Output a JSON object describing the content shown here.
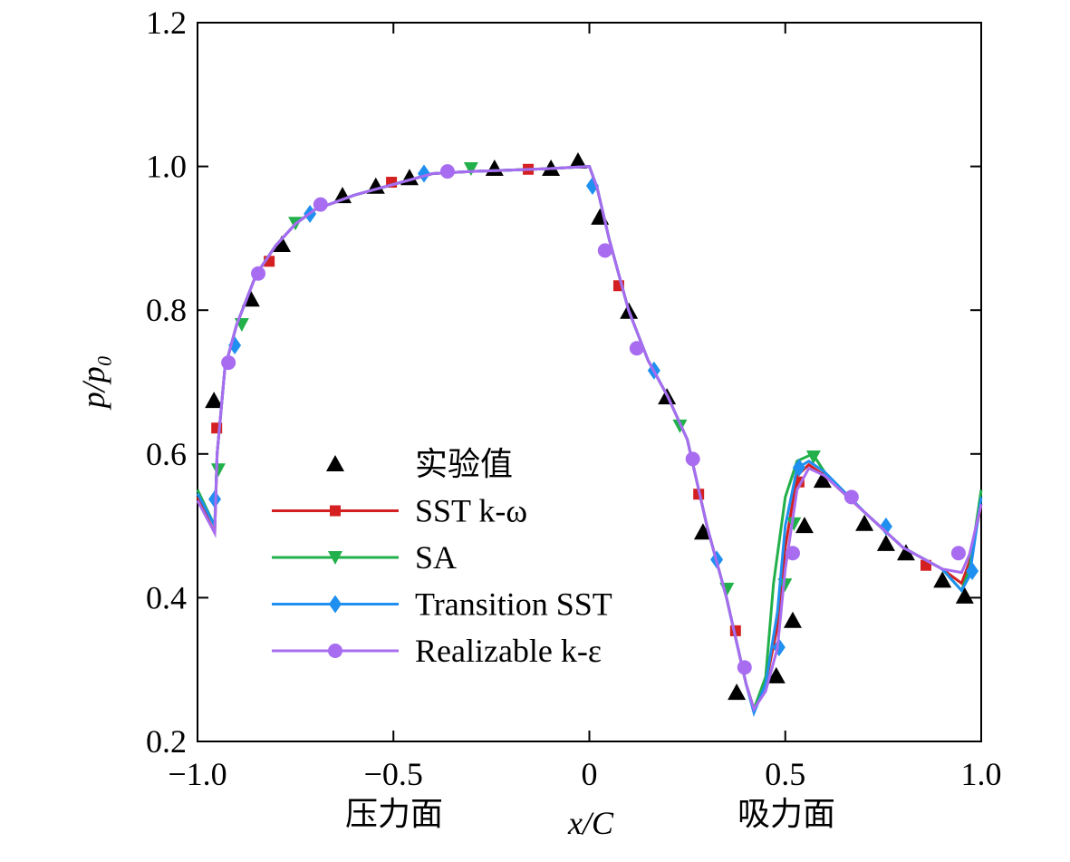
{
  "chart_data": {
    "type": "line",
    "x_label": "x/C",
    "y_label": "p/p₀",
    "annotations": [
      "压力面",
      "吸力面"
    ],
    "xlim": [
      -1.0,
      1.0
    ],
    "xticks": [
      {
        "value": -1.0,
        "label": "−1.0"
      },
      {
        "value": -0.5,
        "label": "−0.5"
      },
      0,
      0.5,
      {
        "value": 1.0,
        "label": "1.0"
      }
    ],
    "ylim": [
      0.2,
      1.2
    ],
    "yticks": [
      0.2,
      0.4,
      0.6,
      0.8,
      {
        "value": 1.0,
        "label": "1.0"
      },
      {
        "value": 1.2,
        "label": "1.2"
      }
    ],
    "legend": "lower-left",
    "series": [
      {
        "name": "实验值",
        "color": "#000000",
        "marker": "triangle",
        "x": [
          -0.958,
          -0.864,
          -0.785,
          -0.63,
          -0.545,
          -0.459,
          -0.242,
          -0.098,
          -0.029,
          0.027,
          0.101,
          0.198,
          0.29,
          0.376,
          0.477,
          0.519,
          0.549,
          0.595,
          0.702,
          0.757,
          0.808,
          0.901,
          0.958
        ],
        "values": [
          0.674,
          0.815,
          0.891,
          0.959,
          0.972,
          0.984,
          0.997,
          0.997,
          1.007,
          0.929,
          0.798,
          0.679,
          0.491,
          0.268,
          0.291,
          0.368,
          0.5,
          0.563,
          0.503,
          0.475,
          0.462,
          0.424,
          0.402
        ]
      },
      {
        "name": "SST k-ω",
        "color": "#d42020",
        "marker": "square",
        "x": [
          -1.0,
          -0.956,
          -0.95,
          -0.93,
          -0.9,
          -0.85,
          -0.8,
          -0.75,
          -0.7,
          -0.6,
          -0.5,
          -0.4,
          -0.3,
          -0.2,
          -0.1,
          0,
          0.02,
          0.05,
          0.1,
          0.15,
          0.2,
          0.25,
          0.3,
          0.35,
          0.4,
          0.42,
          0.45,
          0.48,
          0.5,
          0.53,
          0.56,
          0.6,
          0.7,
          0.8,
          0.9,
          0.95,
          0.97,
          1.0
        ],
        "values": [
          0.54,
          0.49,
          0.6,
          0.72,
          0.78,
          0.85,
          0.89,
          0.92,
          0.94,
          0.96,
          0.975,
          0.99,
          0.993,
          0.995,
          0.997,
          1.0,
          0.97,
          0.9,
          0.8,
          0.73,
          0.68,
          0.62,
          0.5,
          0.4,
          0.28,
          0.245,
          0.28,
          0.36,
          0.47,
          0.57,
          0.585,
          0.57,
          0.52,
          0.47,
          0.44,
          0.42,
          0.45,
          0.53
        ],
        "marker_x": [
          -0.951,
          -0.817,
          -0.505,
          -0.156,
          0.075,
          0.279,
          0.373,
          0.535,
          0.859
        ],
        "marker_values": [
          0.636,
          0.868,
          0.978,
          0.996,
          0.834,
          0.544,
          0.354,
          0.561,
          0.445
        ]
      },
      {
        "name": "SA",
        "color": "#22b04a",
        "marker": "down-triangle",
        "x": [
          -1.0,
          -0.956,
          -0.95,
          -0.93,
          -0.9,
          -0.85,
          -0.8,
          -0.75,
          -0.7,
          -0.6,
          -0.5,
          -0.4,
          -0.3,
          -0.2,
          -0.1,
          0,
          0.02,
          0.05,
          0.1,
          0.15,
          0.2,
          0.25,
          0.3,
          0.35,
          0.4,
          0.42,
          0.45,
          0.47,
          0.5,
          0.53,
          0.57,
          0.6,
          0.7,
          0.8,
          0.9,
          0.95,
          0.97,
          1.0
        ],
        "values": [
          0.55,
          0.5,
          0.6,
          0.72,
          0.78,
          0.85,
          0.89,
          0.92,
          0.94,
          0.96,
          0.975,
          0.99,
          0.993,
          0.995,
          0.997,
          1.0,
          0.97,
          0.9,
          0.8,
          0.73,
          0.68,
          0.62,
          0.5,
          0.4,
          0.28,
          0.245,
          0.29,
          0.42,
          0.54,
          0.59,
          0.6,
          0.575,
          0.52,
          0.47,
          0.44,
          0.41,
          0.44,
          0.55
        ],
        "marker_x": [
          -0.947,
          -0.887,
          -0.75,
          -0.302,
          0.231,
          0.351,
          0.499,
          0.522,
          0.572
        ],
        "marker_values": [
          0.578,
          0.78,
          0.921,
          0.997,
          0.639,
          0.412,
          0.418,
          0.503,
          0.596
        ]
      },
      {
        "name": "Transition SST",
        "color": "#1f8ff0",
        "marker": "diamond",
        "x": [
          -1.0,
          -0.956,
          -0.95,
          -0.93,
          -0.9,
          -0.85,
          -0.8,
          -0.75,
          -0.7,
          -0.6,
          -0.5,
          -0.4,
          -0.3,
          -0.2,
          -0.1,
          0,
          0.02,
          0.05,
          0.1,
          0.15,
          0.2,
          0.25,
          0.3,
          0.35,
          0.4,
          0.42,
          0.45,
          0.48,
          0.5,
          0.53,
          0.56,
          0.6,
          0.7,
          0.8,
          0.9,
          0.95,
          0.97,
          1.0
        ],
        "values": [
          0.545,
          0.5,
          0.6,
          0.72,
          0.78,
          0.85,
          0.89,
          0.92,
          0.94,
          0.96,
          0.975,
          0.99,
          0.993,
          0.995,
          0.997,
          1.0,
          0.97,
          0.9,
          0.8,
          0.73,
          0.68,
          0.62,
          0.5,
          0.4,
          0.28,
          0.24,
          0.28,
          0.38,
          0.5,
          0.58,
          0.59,
          0.575,
          0.52,
          0.47,
          0.44,
          0.41,
          0.43,
          0.54
        ],
        "marker_x": [
          -0.956,
          -0.905,
          -0.713,
          -0.422,
          0.008,
          0.165,
          0.325,
          0.484,
          0.535,
          0.757,
          0.977
        ],
        "marker_values": [
          0.537,
          0.751,
          0.934,
          0.99,
          0.973,
          0.716,
          0.453,
          0.331,
          0.581,
          0.499,
          0.437
        ]
      },
      {
        "name": "Realizable k-ε",
        "color": "#a86cf0",
        "marker": "circle",
        "x": [
          -1.0,
          -0.956,
          -0.95,
          -0.93,
          -0.9,
          -0.85,
          -0.8,
          -0.75,
          -0.7,
          -0.6,
          -0.5,
          -0.4,
          -0.3,
          -0.2,
          -0.1,
          0,
          0.02,
          0.05,
          0.1,
          0.15,
          0.2,
          0.25,
          0.3,
          0.35,
          0.4,
          0.42,
          0.45,
          0.48,
          0.5,
          0.53,
          0.56,
          0.6,
          0.7,
          0.8,
          0.9,
          0.95,
          0.97,
          1.0
        ],
        "values": [
          0.535,
          0.49,
          0.6,
          0.72,
          0.78,
          0.85,
          0.89,
          0.92,
          0.94,
          0.96,
          0.975,
          0.99,
          0.993,
          0.995,
          0.997,
          1.0,
          0.97,
          0.9,
          0.8,
          0.73,
          0.68,
          0.62,
          0.5,
          0.4,
          0.28,
          0.245,
          0.27,
          0.33,
          0.44,
          0.55,
          0.58,
          0.57,
          0.52,
          0.47,
          0.44,
          0.435,
          0.46,
          0.53
        ],
        "marker_x": [
          -0.921,
          -0.845,
          -0.686,
          -0.362,
          0.04,
          0.121,
          0.264,
          0.396,
          0.519,
          0.669,
          0.942
        ],
        "marker_values": [
          0.727,
          0.851,
          0.947,
          0.993,
          0.883,
          0.747,
          0.593,
          0.303,
          0.462,
          0.54,
          0.462
        ]
      }
    ]
  }
}
